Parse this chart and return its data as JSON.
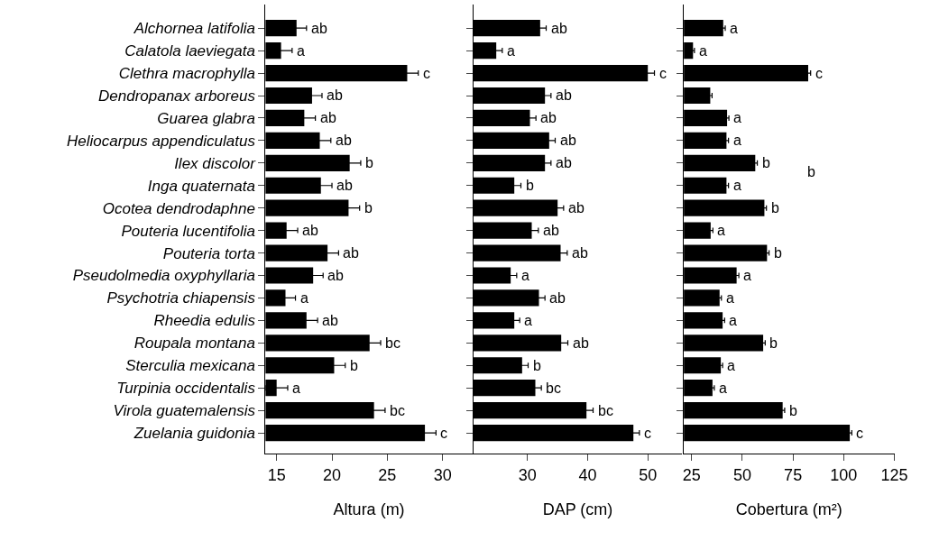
{
  "chart_data": [
    {
      "type": "bar",
      "orientation": "horizontal",
      "color": "#000000",
      "xlabel": "Altura (m)",
      "xlim": [
        14,
        32.7
      ],
      "xticks": [
        15,
        20,
        25,
        30
      ],
      "categories": [
        "Alchornea latifolia",
        "Calatola laeviegata",
        "Clethra macrophylla",
        "Dendropanax arboreus",
        "Guarea glabra",
        "Heliocarpus appendiculatus",
        "Ilex discolor",
        "Inga quaternata",
        "Ocotea dendrodaphne",
        "Pouteria lucentifolia",
        "Pouteria torta",
        "Pseudolmedia oxyphyllaria",
        "Psychotria chiapensis",
        "Rheedia edulis",
        "Roupala montana",
        "Sterculia mexicana",
        "Turpinia occidentalis",
        "Virola guatemalensis",
        "Zuelania guidonia"
      ],
      "values": [
        16.8,
        15.4,
        26.8,
        18.2,
        17.5,
        18.9,
        21.6,
        19.0,
        21.5,
        15.9,
        19.6,
        18.3,
        15.8,
        17.7,
        23.4,
        20.2,
        15.0,
        23.8,
        28.4
      ],
      "errors": [
        0.9,
        1.0,
        1.0,
        0.9,
        1.0,
        1.0,
        1.0,
        1.0,
        1.0,
        1.0,
        1.0,
        0.9,
        0.9,
        1.0,
        1.0,
        1.0,
        1.0,
        1.0,
        1.0
      ],
      "value_labels": [
        "ab",
        "a",
        "c",
        "ab",
        "ab",
        "ab",
        "b",
        "ab",
        "b",
        "ab",
        "ab",
        "ab",
        "a",
        "ab",
        "bc",
        "b",
        "a",
        "bc",
        "c"
      ]
    },
    {
      "type": "bar",
      "orientation": "horizontal",
      "color": "#000000",
      "xlabel": "DAP (cm)",
      "xlim": [
        21,
        55.7
      ],
      "xticks": [
        30,
        40,
        50
      ],
      "tick_labels": "x",
      "categories": [
        null,
        null,
        null,
        null,
        null,
        null,
        null,
        null,
        null,
        null,
        null,
        null,
        null,
        null,
        null,
        null,
        null,
        null,
        null
      ],
      "values": [
        32.1,
        24.8,
        50.0,
        32.9,
        30.4,
        33.6,
        32.9,
        27.8,
        35.0,
        30.7,
        35.5,
        27.2,
        31.9,
        27.8,
        35.6,
        29.1,
        31.3,
        39.8,
        47.6
      ],
      "errors": [
        1.0,
        1.0,
        1.1,
        1.0,
        1.0,
        1.0,
        1.0,
        1.1,
        1.0,
        1.1,
        1.1,
        1.0,
        1.0,
        0.9,
        1.1,
        1.0,
        1.0,
        1.1,
        1.0
      ],
      "value_labels": [
        "ab",
        "a",
        "c",
        "ab",
        "ab",
        "ab",
        "ab",
        "b",
        "ab",
        "ab",
        "ab",
        "a",
        "ab",
        "a",
        "ab",
        "b",
        "bc",
        "bc",
        "c"
      ]
    },
    {
      "type": "bar",
      "orientation": "horizontal",
      "color": "#000000",
      "xlabel": "Cobertura (m²)",
      "xlim": [
        21.2,
        125
      ],
      "xticks": [
        25,
        50,
        75,
        100,
        125
      ],
      "tick_labels": "x",
      "categories": [
        null,
        null,
        null,
        null,
        null,
        null,
        null,
        null,
        null,
        null,
        null,
        null,
        null,
        null,
        null,
        null,
        null,
        null,
        null
      ],
      "values": [
        40.6,
        25.7,
        82.5,
        34.2,
        42.5,
        42.2,
        56.4,
        42.2,
        60.9,
        34.4,
        62.2,
        47.2,
        38.8,
        40.3,
        60.3,
        39.4,
        35.3,
        69.9,
        103.0
      ],
      "errors": [
        1.0,
        0.7,
        1.2,
        0.9,
        0.9,
        1.0,
        1.0,
        1.0,
        1.0,
        1.1,
        1.0,
        1.1,
        0.9,
        1.0,
        1.0,
        0.9,
        0.9,
        1.0,
        1.0
      ],
      "value_labels": [
        "a",
        "a",
        "c",
        null,
        "a",
        "a",
        "b",
        "a",
        "b",
        "a",
        "b",
        "a",
        "a",
        "a",
        "b",
        "a",
        "a",
        "b",
        "c"
      ],
      "annotations": [
        "b"
      ]
    }
  ]
}
